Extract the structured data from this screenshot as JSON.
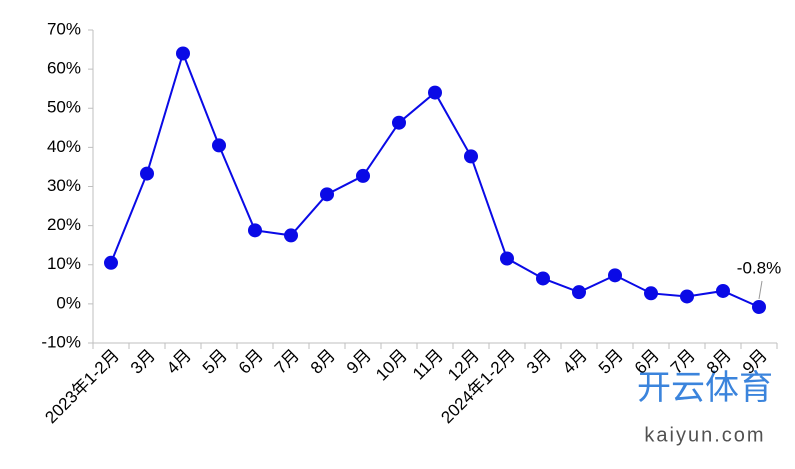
{
  "chart_data": {
    "type": "line",
    "categories": [
      "2023年1-2月",
      "3月",
      "4月",
      "5月",
      "6月",
      "7月",
      "8月",
      "9月",
      "10月",
      "11月",
      "12月",
      "2024年1-2月",
      "3月",
      "4月",
      "5月",
      "6月",
      "7月",
      "8月",
      "9月"
    ],
    "series": [
      {
        "name": null,
        "color": "#0a0ae6",
        "values": [
          10.5,
          33.3,
          64,
          40.5,
          18.8,
          17.5,
          28,
          32.7,
          46.3,
          54,
          37.7,
          11.6,
          6.5,
          3,
          7.3,
          2.7,
          1.9,
          3.3,
          -0.8
        ],
        "value_labels": [
          null,
          null,
          null,
          null,
          null,
          null,
          null,
          null,
          null,
          null,
          null,
          null,
          null,
          null,
          null,
          null,
          null,
          null,
          "-0.8%"
        ]
      }
    ],
    "ylim": [
      -10,
      70
    ],
    "yticks": [
      {
        "value": -10,
        "label": "-10%"
      },
      {
        "value": 0,
        "label": "0%"
      },
      {
        "value": 10,
        "label": "10%"
      },
      {
        "value": 20,
        "label": "20%"
      },
      {
        "value": 30,
        "label": "30%"
      },
      {
        "value": 40,
        "label": "40%"
      },
      {
        "value": 50,
        "label": "50%"
      },
      {
        "value": 60,
        "label": "60%"
      },
      {
        "value": 70,
        "label": "70%"
      }
    ],
    "grid": false
  },
  "watermark": {
    "brand": "开云体育",
    "url": "kaiyun.com"
  }
}
